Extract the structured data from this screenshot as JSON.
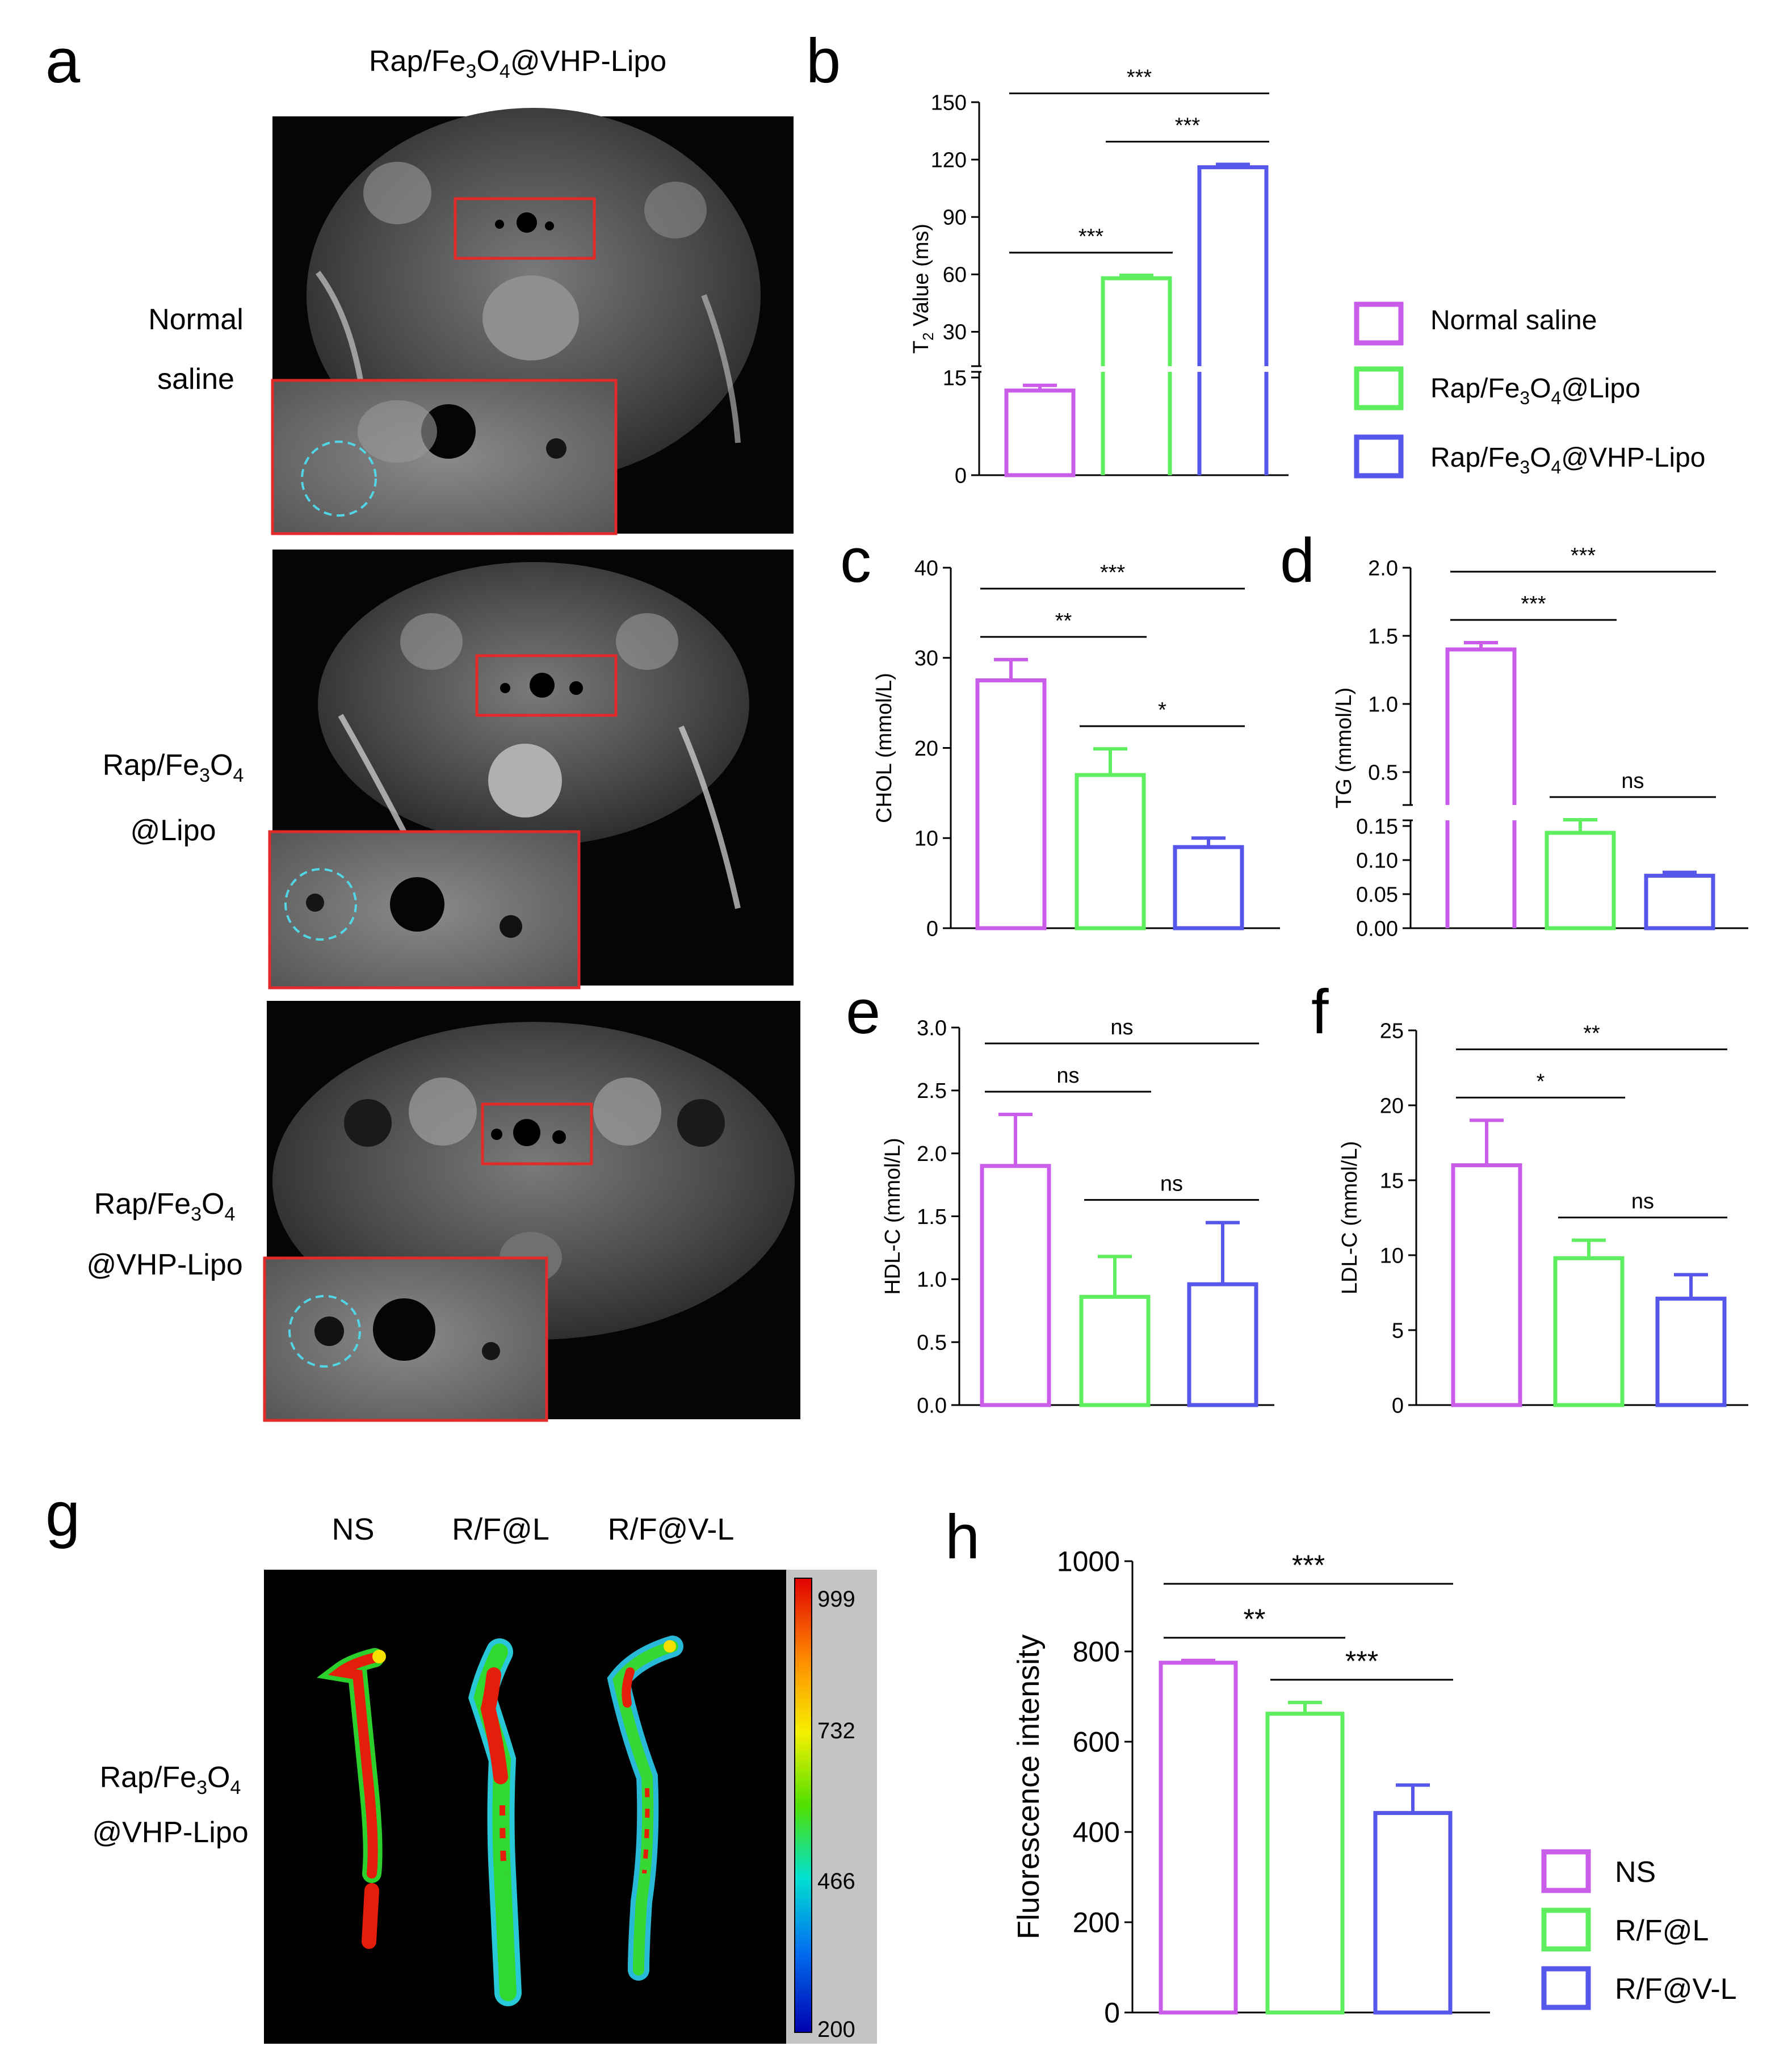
{
  "colors": {
    "ns": "#c95ce9",
    "lipo": "#5fee5f",
    "vhp": "#5656ea",
    "roi": "#e12a2a",
    "circle": "#52d6e6"
  },
  "panel_a": {
    "letter": "a",
    "column_title_main": "Rap/Fe",
    "column_title_sub": "3",
    "column_title_mid": "O",
    "column_title_sub2": "4",
    "column_title_tail": "@VHP-Lipo",
    "rows": [
      {
        "line1": "Normal",
        "line2": "saline"
      },
      {
        "line1_main": "Rap/Fe",
        "line1_sub": "3",
        "line1_mid": "O",
        "line1_sub2": "4",
        "line2": "@Lipo"
      },
      {
        "line1_main": "Rap/Fe",
        "line1_sub": "3",
        "line1_mid": "O",
        "line1_sub2": "4",
        "line2": "@VHP-Lipo"
      }
    ]
  },
  "panel_g": {
    "letter": "g",
    "lane_labels": [
      "NS",
      "R/F@L",
      "R/F@V-L"
    ],
    "row_label_main": "Rap/Fe",
    "row_label_sub": "3",
    "row_label_mid": "O",
    "row_label_sub2": "4",
    "row_label_line2": "@VHP-Lipo",
    "colorbar_ticks": [
      "999",
      "732",
      "466",
      "200"
    ]
  },
  "legend_b": {
    "entries": [
      {
        "main": "Normal saline",
        "sub": "",
        "mid": "",
        "sub2": "",
        "tail": ""
      },
      {
        "main": "Rap/Fe",
        "sub": "3",
        "mid": "O",
        "sub2": "4",
        "tail": "@Lipo"
      },
      {
        "main": "Rap/Fe",
        "sub": "3",
        "mid": "O",
        "sub2": "4",
        "tail": "@VHP-Lipo"
      }
    ]
  },
  "legend_h": {
    "entries": [
      "NS",
      "R/F@L",
      "R/F@V-L"
    ]
  },
  "chart_data": [
    {
      "id": "b",
      "letter": "b",
      "type": "bar",
      "ylabel_main": "T",
      "ylabel_sub": "2",
      "ylabel_tail": " Value  (ms)",
      "categories": [
        "Normal saline",
        "Rap/Fe3O4@Lipo",
        "Rap/Fe3O4@VHP-Lipo"
      ],
      "values": [
        13,
        58,
        116
      ],
      "errors": [
        0.8,
        1.5,
        1.5
      ],
      "broken_axis": {
        "lower": [
          0,
          15
        ],
        "upper": [
          15,
          150
        ]
      },
      "yticks_lower": [
        "0",
        "15"
      ],
      "yticks_upper": [
        "30",
        "60",
        "90",
        "120",
        "150"
      ],
      "significance": [
        {
          "from": 0,
          "to": 1,
          "label": "***"
        },
        {
          "from": 1,
          "to": 2,
          "label": "***"
        },
        {
          "from": 0,
          "to": 2,
          "label": "***"
        }
      ]
    },
    {
      "id": "c",
      "letter": "c",
      "type": "bar",
      "ylabel": "CHOL (mmol/L)",
      "values": [
        27.5,
        17,
        9
      ],
      "errors": [
        2.3,
        2.9,
        1
      ],
      "ylim": [
        0,
        40
      ],
      "yticks": [
        "0",
        "10",
        "20",
        "30",
        "40"
      ],
      "significance": [
        {
          "from": 0,
          "to": 1,
          "label": "**"
        },
        {
          "from": 1,
          "to": 2,
          "label": "*"
        },
        {
          "from": 0,
          "to": 2,
          "label": "***"
        }
      ]
    },
    {
      "id": "d",
      "letter": "d",
      "type": "bar",
      "ylabel": "TG (mmol/L)",
      "values": [
        1.4,
        0.14,
        0.077
      ],
      "errors": [
        0.05,
        0.01,
        0.005
      ],
      "broken_axis": {
        "lower": [
          0,
          0.15
        ],
        "upper": [
          0.3,
          2.0
        ]
      },
      "yticks_lower": [
        "0.00",
        "0.05",
        "0.10",
        "0.15"
      ],
      "yticks_upper": [
        "0.5",
        "1.0",
        "1.5",
        "2.0"
      ],
      "significance": [
        {
          "from": 0,
          "to": 1,
          "label": "***"
        },
        {
          "from": 1,
          "to": 2,
          "label": "ns"
        },
        {
          "from": 0,
          "to": 2,
          "label": "***"
        }
      ]
    },
    {
      "id": "e",
      "letter": "e",
      "type": "bar",
      "ylabel": "HDL-C (mmol/L)",
      "values": [
        1.9,
        0.86,
        0.96
      ],
      "errors": [
        0.41,
        0.32,
        0.49
      ],
      "ylim": [
        0,
        3.0
      ],
      "yticks": [
        "0.0",
        "0.5",
        "1.0",
        "1.5",
        "2.0",
        "2.5",
        "3.0"
      ],
      "significance": [
        {
          "from": 0,
          "to": 1,
          "label": "ns"
        },
        {
          "from": 1,
          "to": 2,
          "label": "ns"
        },
        {
          "from": 0,
          "to": 2,
          "label": "ns"
        }
      ]
    },
    {
      "id": "f",
      "letter": "f",
      "type": "bar",
      "ylabel": "LDL-C (mmol/L)",
      "values": [
        16,
        9.8,
        7.1
      ],
      "errors": [
        3,
        1.2,
        1.6
      ],
      "ylim": [
        0,
        25
      ],
      "yticks": [
        "0",
        "5",
        "10",
        "15",
        "20",
        "25"
      ],
      "significance": [
        {
          "from": 0,
          "to": 1,
          "label": "*"
        },
        {
          "from": 1,
          "to": 2,
          "label": "ns"
        },
        {
          "from": 0,
          "to": 2,
          "label": "**"
        }
      ]
    },
    {
      "id": "h",
      "letter": "h",
      "type": "bar",
      "ylabel": "Fluorescence intensity",
      "categories": [
        "NS",
        "R/F@L",
        "R/F@V-L"
      ],
      "values": [
        775,
        662,
        442
      ],
      "errors": [
        5,
        25,
        62
      ],
      "ylim": [
        0,
        1000
      ],
      "yticks": [
        "0",
        "200",
        "400",
        "600",
        "800",
        "1000"
      ],
      "significance": [
        {
          "from": 0,
          "to": 1,
          "label": "**"
        },
        {
          "from": 1,
          "to": 2,
          "label": "***"
        },
        {
          "from": 0,
          "to": 2,
          "label": "***"
        }
      ]
    }
  ]
}
